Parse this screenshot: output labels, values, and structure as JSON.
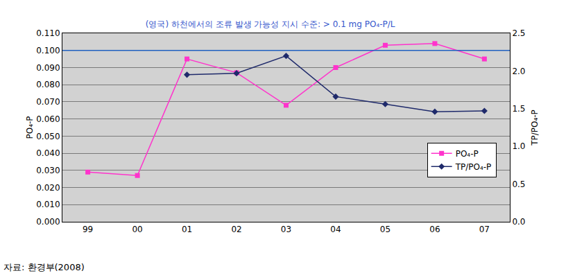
{
  "chart_data": {
    "type": "line",
    "title": "(영국) 하천에서의 조류 발생 가능성 지시 수준: > 0.1 mg PO₄-P/L",
    "y_label": "PO₄-P",
    "y2_label": "TP/PO₄-P",
    "source": "자료: 환경부(2008)",
    "categories": [
      "99",
      "00",
      "01",
      "02",
      "03",
      "04",
      "05",
      "06",
      "07"
    ],
    "series": [
      {
        "name": "PO₄-P",
        "color": "#ff33cc",
        "marker": "square",
        "line_style": "solid",
        "values": [
          0.029,
          0.027,
          0.095,
          0.087,
          0.068,
          0.09,
          0.103,
          0.104,
          0.095
        ]
      },
      {
        "name": "TP/PO₄-P",
        "color": "#1f2a6b",
        "marker": "diamond",
        "line_style": "solid",
        "axis": "y2",
        "values": [
          null,
          null,
          1.95,
          1.97,
          2.2,
          1.66,
          1.56,
          1.46,
          1.47
        ]
      }
    ],
    "threshold": 0.1,
    "ylim": [
      0,
      0.11
    ],
    "yticks": [
      {
        "value": 0,
        "label": "0.000"
      },
      {
        "value": 0.01,
        "label": "0.010"
      },
      {
        "value": 0.02,
        "label": "0.020"
      },
      {
        "value": 0.03,
        "label": "0.030"
      },
      {
        "value": 0.04,
        "label": "0.040"
      },
      {
        "value": 0.05,
        "label": "0.050"
      },
      {
        "value": 0.06,
        "label": "0.060"
      },
      {
        "value": 0.07,
        "label": "0.070"
      },
      {
        "value": 0.08,
        "label": "0.080"
      },
      {
        "value": 0.09,
        "label": "0.090"
      },
      {
        "value": 0.1,
        "label": "0.100"
      },
      {
        "value": 0.11,
        "label": "0.110"
      }
    ],
    "y2lim": [
      0,
      2.5
    ],
    "y2ticks": [
      {
        "value": 0,
        "label": "0.0"
      },
      0.5,
      {
        "value": 1,
        "label": "1.0"
      },
      1.5,
      {
        "value": 2,
        "label": "2.0"
      },
      2.5
    ],
    "grid": true,
    "legend": "right"
  }
}
